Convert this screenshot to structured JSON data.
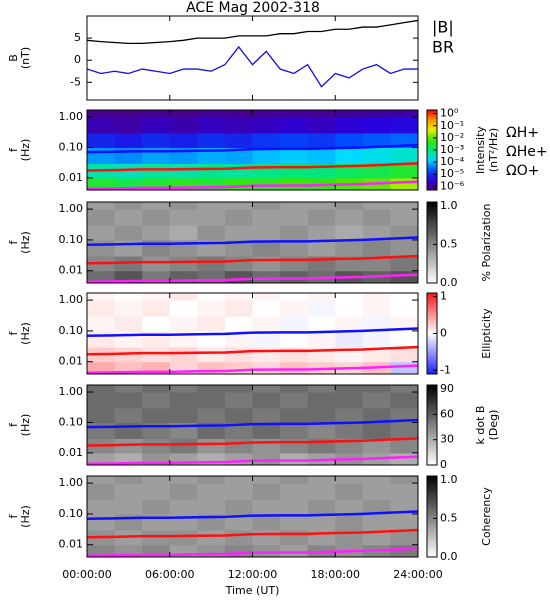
{
  "chart_data": [
    {
      "type": "line",
      "title": "ACE Mag 2002-318",
      "ylabel": [
        "B",
        "(nT)"
      ],
      "x": [
        0,
        1,
        2,
        3,
        4,
        5,
        6,
        7,
        8,
        9,
        10,
        11,
        12,
        13,
        14,
        15,
        16,
        17,
        18,
        19,
        20,
        21,
        22,
        23,
        24
      ],
      "series": [
        {
          "name": "|B|",
          "color": "#000000",
          "values": [
            4.5,
            4.2,
            4,
            3.8,
            3.8,
            4,
            4.2,
            4.5,
            5,
            5,
            5,
            5.5,
            5.5,
            5.5,
            6,
            6,
            6.5,
            6.5,
            7,
            7,
            7.5,
            7.5,
            8,
            8.5,
            9
          ]
        },
        {
          "name": "BR",
          "color": "#1010e0",
          "values": [
            -2,
            -3,
            -2.5,
            -3,
            -2,
            -2.5,
            -3,
            -2,
            -2,
            -2.5,
            -1,
            3,
            -1,
            2,
            -2,
            -3,
            -1,
            -6,
            -3,
            -4,
            -2,
            -1,
            -3,
            -2,
            -2
          ]
        }
      ],
      "xlim": [
        0,
        24
      ],
      "ylim": [
        -9,
        10
      ],
      "yticks": [
        5,
        0,
        -5
      ]
    },
    {
      "type": "heatmap",
      "ylabel": [
        "f",
        "(Hz)"
      ],
      "zlabel": [
        "Intensity",
        "(nT²/Hz)"
      ],
      "cmap": "rainbow",
      "zscale": "log",
      "yscale": "log",
      "x_bins": [
        0,
        2,
        4,
        6,
        8,
        10,
        12,
        14,
        16,
        18,
        20,
        22,
        24
      ],
      "y_bins": [
        0.004,
        0.01,
        0.03,
        0.1,
        0.3,
        1,
        1.7
      ],
      "z": [
        [
          0.003,
          0.002,
          0.003,
          0.004,
          0.003,
          0.005,
          0.004,
          0.006,
          0.005,
          0.008,
          0.01,
          0.02
        ],
        [
          0.0005,
          0.0004,
          0.0006,
          0.0005,
          0.0007,
          0.0006,
          0.0008,
          0.001,
          0.0009,
          0.0015,
          0.002,
          0.003
        ],
        [
          6e-05,
          5e-05,
          7e-05,
          6e-05,
          8e-05,
          7e-05,
          0.0001,
          0.00012,
          0.0001,
          0.00015,
          0.0002,
          0.0003
        ],
        [
          8e-06,
          6e-06,
          9e-06,
          7e-06,
          1e-05,
          8e-06,
          1.2e-05,
          1.5e-05,
          1.2e-05,
          2e-05,
          2.5e-05,
          3e-05
        ],
        [
          1.5e-06,
          1.2e-06,
          1.8e-06,
          1.4e-06,
          2e-06,
          1.6e-06,
          2e-06,
          2.5e-06,
          2e-06,
          3e-06,
          3.5e-06,
          4e-06
        ],
        [
          8e-07,
          7e-07,
          8e-07,
          7e-07,
          9e-07,
          8e-07,
          9e-07,
          1e-06,
          9e-07,
          1e-06,
          1.1e-06,
          1.2e-06
        ]
      ],
      "zlim": [
        5e-07,
        2
      ],
      "zticks": [
        {
          "value": 1,
          "label": "10⁰"
        },
        {
          "value": 0.1,
          "label": "10⁻¹"
        },
        {
          "value": 0.01,
          "label": "10⁻²"
        },
        {
          "value": 0.001,
          "label": "10⁻³"
        },
        {
          "value": 0.0001,
          "label": "10⁻⁴"
        },
        {
          "value": 1e-05,
          "label": "10⁻⁵"
        },
        {
          "value": 1e-06,
          "label": "10⁻⁶"
        }
      ],
      "series_x": [
        0,
        2,
        4,
        6,
        8,
        10,
        12,
        14,
        16,
        18,
        20,
        22,
        24
      ],
      "series": [
        {
          "name": "ΩH+",
          "color": "#1010ff",
          "values": [
            0.07,
            0.072,
            0.075,
            0.075,
            0.078,
            0.08,
            0.088,
            0.09,
            0.09,
            0.095,
            0.1,
            0.11,
            0.12
          ]
        },
        {
          "name": "ΩHe+",
          "color": "#ff1010",
          "values": [
            0.0175,
            0.018,
            0.019,
            0.019,
            0.0195,
            0.02,
            0.022,
            0.0225,
            0.0225,
            0.024,
            0.025,
            0.0275,
            0.03
          ]
        },
        {
          "name": "ΩO+",
          "color": "#ff20ff",
          "values": [
            0.0044,
            0.0045,
            0.0047,
            0.0047,
            0.0049,
            0.005,
            0.0055,
            0.0056,
            0.0056,
            0.006,
            0.0063,
            0.0069,
            0.0075
          ]
        }
      ],
      "ylim": [
        0.004,
        1.7
      ],
      "yticks": [
        {
          "value": 1,
          "label": "1.00"
        },
        {
          "value": 0.1,
          "label": "0.10"
        },
        {
          "value": 0.01,
          "label": "0.01"
        }
      ]
    },
    {
      "type": "heatmap",
      "ylabel": [
        "f",
        "(Hz)"
      ],
      "zlabel": [
        "% Polarization"
      ],
      "cmap": "gray_r",
      "zscale": "linear",
      "yscale": "log",
      "x_bins": [
        0,
        2,
        4,
        6,
        8,
        10,
        12,
        14,
        16,
        18,
        20,
        22,
        24
      ],
      "y_bins": [
        0.004,
        0.01,
        0.03,
        0.1,
        0.3,
        1,
        1.7
      ],
      "z": [
        [
          0.6,
          0.7,
          0.55,
          0.65,
          0.6,
          0.7,
          0.6,
          0.65,
          0.6,
          0.7,
          0.65,
          0.7
        ],
        [
          0.5,
          0.55,
          0.45,
          0.5,
          0.55,
          0.5,
          0.45,
          0.5,
          0.55,
          0.5,
          0.5,
          0.55
        ],
        [
          0.45,
          0.4,
          0.5,
          0.45,
          0.4,
          0.45,
          0.5,
          0.45,
          0.4,
          0.45,
          0.5,
          0.45
        ],
        [
          0.4,
          0.45,
          0.4,
          0.35,
          0.45,
          0.4,
          0.4,
          0.45,
          0.4,
          0.35,
          0.4,
          0.45
        ],
        [
          0.45,
          0.4,
          0.45,
          0.4,
          0.4,
          0.45,
          0.4,
          0.4,
          0.45,
          0.4,
          0.45,
          0.4
        ],
        [
          0.4,
          0.45,
          0.4,
          0.45,
          0.4,
          0.4,
          0.45,
          0.4,
          0.4,
          0.45,
          0.4,
          0.4
        ]
      ],
      "zlim": [
        0,
        1.05
      ],
      "zticks": [
        {
          "value": 0,
          "label": "0.0"
        },
        {
          "value": 0.5,
          "label": "0.5"
        },
        {
          "value": 1,
          "label": "1.0"
        }
      ],
      "ylim": [
        0.004,
        1.7
      ],
      "yticks": [
        {
          "value": 1,
          "label": "1.00"
        },
        {
          "value": 0.1,
          "label": "0.10"
        },
        {
          "value": 0.01,
          "label": "0.01"
        }
      ]
    },
    {
      "type": "heatmap",
      "ylabel": [
        "f",
        "(Hz)"
      ],
      "zlabel": [
        "Ellipticity"
      ],
      "cmap": "bwr",
      "zscale": "linear",
      "yscale": "log",
      "x_bins": [
        0,
        2,
        4,
        6,
        8,
        10,
        12,
        14,
        16,
        18,
        20,
        22,
        24
      ],
      "y_bins": [
        0.004,
        0.01,
        0.03,
        0.1,
        0.3,
        1,
        1.7
      ],
      "z": [
        [
          0.4,
          0.3,
          0.35,
          0.2,
          0.3,
          0.25,
          0.2,
          0.3,
          0.25,
          0.2,
          0.3,
          -0.3
        ],
        [
          0.25,
          0.2,
          0.15,
          0.2,
          0.1,
          0.15,
          0.1,
          0.15,
          0.1,
          0.05,
          0.1,
          0.15
        ],
        [
          0.1,
          0.05,
          0.1,
          0.05,
          0,
          0.05,
          -0.05,
          0,
          0.05,
          -0.1,
          -0.05,
          0
        ],
        [
          0.05,
          0.1,
          0,
          0.05,
          0.1,
          0,
          0.05,
          -0.05,
          0,
          0.05,
          -0.05,
          0.05
        ],
        [
          0.1,
          0.05,
          0.1,
          0,
          0.05,
          0.1,
          0,
          0.05,
          -0.05,
          0,
          0.05,
          0
        ],
        [
          0.05,
          0,
          0.05,
          0.1,
          0,
          0.05,
          0.05,
          0,
          0.05,
          0,
          0.05,
          0
        ]
      ],
      "zlim": [
        -1.1,
        1.1
      ],
      "zticks": [
        -1,
        0,
        1
      ],
      "ylim": [
        0.004,
        1.7
      ],
      "yticks": [
        {
          "value": 1,
          "label": "1.00"
        },
        {
          "value": 0.1,
          "label": "0.10"
        },
        {
          "value": 0.01,
          "label": "0.01"
        }
      ]
    },
    {
      "type": "heatmap",
      "ylabel": [
        "f",
        "(Hz)"
      ],
      "zlabel": [
        "k dot B",
        "(Deg)"
      ],
      "cmap": "gray_r",
      "zscale": "linear",
      "yscale": "log",
      "x_bins": [
        0,
        2,
        4,
        6,
        8,
        10,
        12,
        14,
        16,
        18,
        20,
        22,
        24
      ],
      "y_bins": [
        0.004,
        0.01,
        0.03,
        0.1,
        0.3,
        1,
        1.7
      ],
      "z": [
        [
          35,
          30,
          40,
          35,
          30,
          35,
          40,
          30,
          35,
          40,
          35,
          30
        ],
        [
          45,
          40,
          45,
          50,
          40,
          45,
          40,
          45,
          50,
          45,
          40,
          45
        ],
        [
          50,
          55,
          50,
          45,
          55,
          50,
          55,
          50,
          45,
          50,
          55,
          50
        ],
        [
          55,
          50,
          55,
          55,
          50,
          55,
          50,
          55,
          55,
          50,
          55,
          50
        ],
        [
          55,
          55,
          50,
          55,
          55,
          50,
          55,
          50,
          55,
          55,
          50,
          55
        ],
        [
          55,
          50,
          55,
          50,
          55,
          55,
          50,
          55,
          50,
          55,
          55,
          50
        ]
      ],
      "zlim": [
        0,
        95
      ],
      "zticks": [
        0,
        30,
        60,
        90
      ],
      "ylim": [
        0.004,
        1.7
      ],
      "yticks": [
        {
          "value": 1,
          "label": "1.00"
        },
        {
          "value": 0.1,
          "label": "0.10"
        },
        {
          "value": 0.01,
          "label": "0.01"
        }
      ]
    },
    {
      "type": "heatmap",
      "ylabel": [
        "f",
        "(Hz)"
      ],
      "zlabel": [
        "Coherency"
      ],
      "cmap": "gray_r",
      "zscale": "linear",
      "yscale": "log",
      "x_bins": [
        0,
        2,
        4,
        6,
        8,
        10,
        12,
        14,
        16,
        18,
        20,
        22,
        24
      ],
      "y_bins": [
        0.004,
        0.01,
        0.03,
        0.1,
        0.3,
        1,
        1.7
      ],
      "z": [
        [
          0.5,
          0.45,
          0.5,
          0.4,
          0.45,
          0.5,
          0.45,
          0.4,
          0.5,
          0.45,
          0.5,
          0.55
        ],
        [
          0.45,
          0.4,
          0.45,
          0.45,
          0.4,
          0.45,
          0.4,
          0.45,
          0.4,
          0.45,
          0.4,
          0.45
        ],
        [
          0.4,
          0.45,
          0.4,
          0.4,
          0.45,
          0.4,
          0.45,
          0.4,
          0.4,
          0.45,
          0.4,
          0.4
        ],
        [
          0.4,
          0.4,
          0.45,
          0.4,
          0.4,
          0.45,
          0.4,
          0.4,
          0.45,
          0.4,
          0.45,
          0.4
        ],
        [
          0.45,
          0.4,
          0.4,
          0.45,
          0.4,
          0.4,
          0.45,
          0.4,
          0.4,
          0.45,
          0.4,
          0.4
        ],
        [
          0.4,
          0.45,
          0.4,
          0.4,
          0.45,
          0.4,
          0.4,
          0.45,
          0.4,
          0.4,
          0.4,
          0.45
        ]
      ],
      "zlim": [
        0,
        1.05
      ],
      "zticks": [
        {
          "value": 0,
          "label": "0.0"
        },
        {
          "value": 0.5,
          "label": "0.5"
        },
        {
          "value": 1,
          "label": "1.0"
        }
      ],
      "ylim": [
        0.004,
        1.7
      ],
      "yticks": [
        {
          "value": 1,
          "label": "1.00"
        },
        {
          "value": 0.1,
          "label": "0.10"
        },
        {
          "value": 0.01,
          "label": "0.01"
        }
      ],
      "xlim": [
        0,
        24
      ],
      "xlabel": "Time (UT)",
      "xticks": [
        {
          "value": 0,
          "label": "00:00:00"
        },
        {
          "value": 6,
          "label": "06:00:00"
        },
        {
          "value": 12,
          "label": "12:00:00"
        },
        {
          "value": 18,
          "label": "18:00:00"
        },
        {
          "value": 24,
          "label": "24:00:00"
        }
      ]
    }
  ]
}
